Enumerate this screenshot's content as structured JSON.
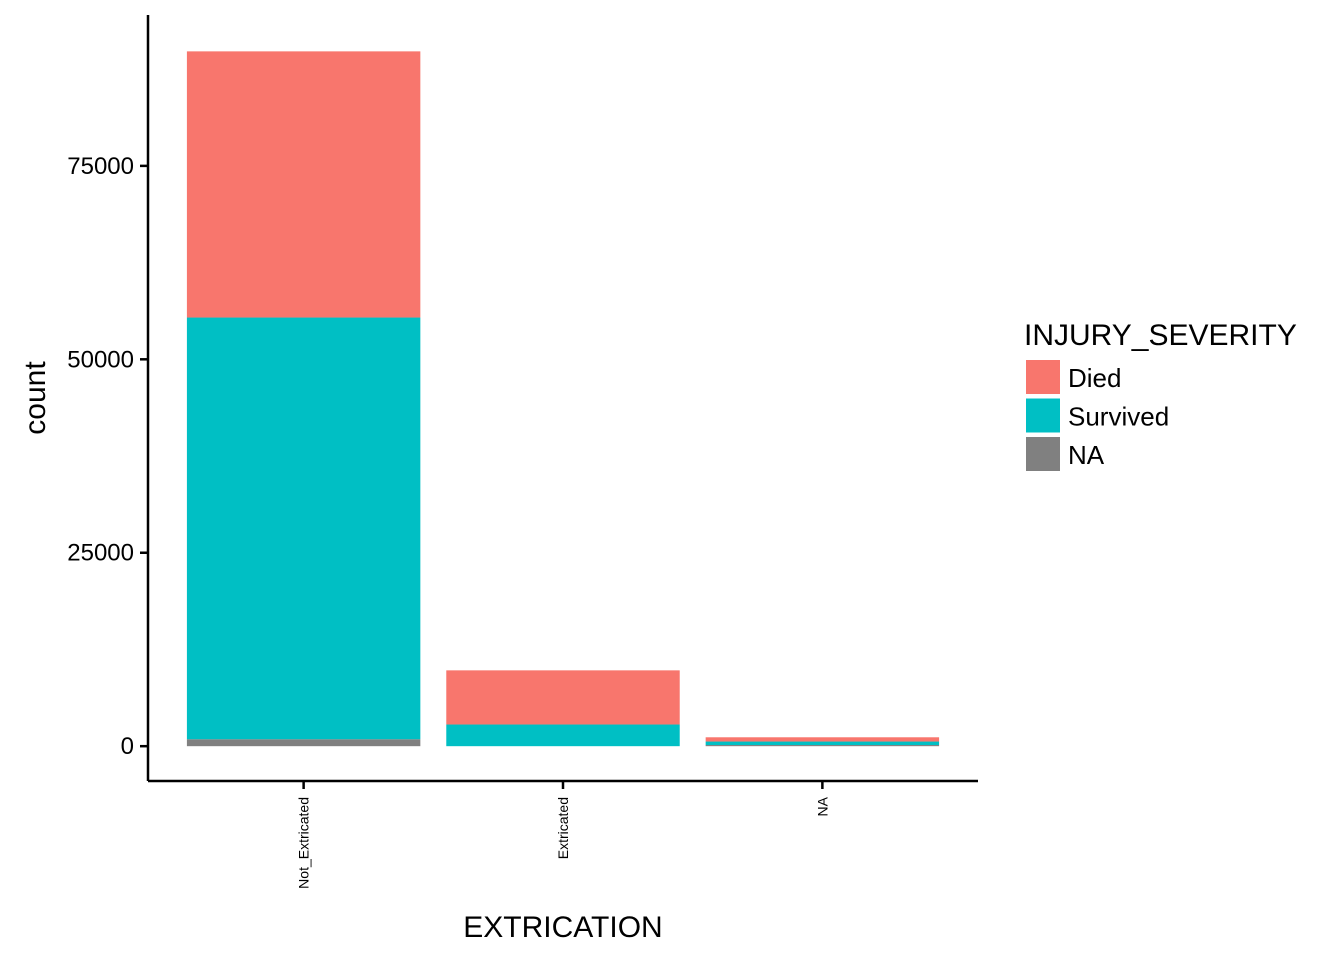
{
  "chart_data": {
    "type": "bar",
    "stacked": true,
    "xlabel": "EXTRICATION",
    "ylabel": "count",
    "categories": [
      "Not_Extricated",
      "Extricated",
      "NA"
    ],
    "yticks": [
      0,
      25000,
      50000,
      75000
    ],
    "ylim": [
      -4500,
      94500
    ],
    "grid": false,
    "legend": {
      "title": "INJURY_SEVERITY",
      "position": "right",
      "entries": [
        "Died",
        "Survived",
        "NA"
      ]
    },
    "series": [
      {
        "name": "NA",
        "color": "#808080",
        "values": [
          900,
          0,
          150
        ]
      },
      {
        "name": "Survived",
        "color": "#00BFC4",
        "values": [
          54500,
          2800,
          450
        ]
      },
      {
        "name": "Died",
        "color": "#F8766D",
        "values": [
          34400,
          7000,
          550
        ]
      }
    ]
  }
}
